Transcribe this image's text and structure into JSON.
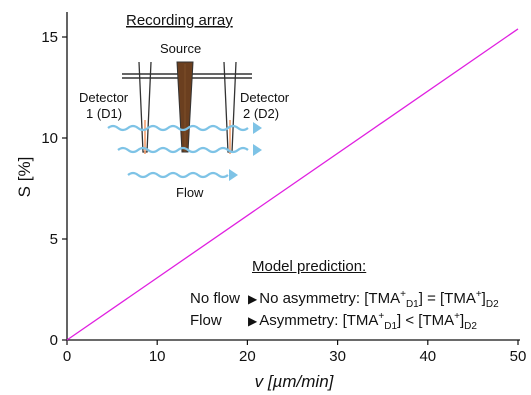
{
  "chart_data": {
    "type": "line",
    "xlabel": "v [µm/min]",
    "ylabel": "S [%]",
    "xlim": [
      0,
      50
    ],
    "ylim": [
      0,
      16
    ],
    "x_ticks": [
      "0",
      "10",
      "20",
      "30",
      "40",
      "50"
    ],
    "y_ticks": [
      "0",
      "5",
      "10",
      "15"
    ],
    "x_tick_values": [
      0,
      10,
      20,
      30,
      40,
      50
    ],
    "y_tick_values": [
      0,
      5,
      10,
      15
    ],
    "grid": false,
    "series": [
      {
        "color": "#e020e0",
        "x": [
          0,
          50
        ],
        "y": [
          0,
          15.4
        ]
      }
    ]
  },
  "inset": {
    "title": "Recording array",
    "source_label": "Source",
    "detector1_line1": "Detector",
    "detector1_line2": "1 (D1)",
    "detector2_line1": "Detector",
    "detector2_line2": "2 (D2)",
    "flow_label": "Flow",
    "flow_color": "#7ec3e6",
    "source_color": "#6b3f1f"
  },
  "model": {
    "title": "Model prediction:",
    "row1_condition": "No flow",
    "row1_result": "No asymmetry: [TMA",
    "row1_rel": "] = [TMA",
    "row2_condition": "Flow",
    "row2_result": "Asymmetry: [TMA",
    "row2_rel": "] < [TMA",
    "sup": "+",
    "sub1": "D1",
    "sub2": "D2",
    "arrow": "▶"
  }
}
